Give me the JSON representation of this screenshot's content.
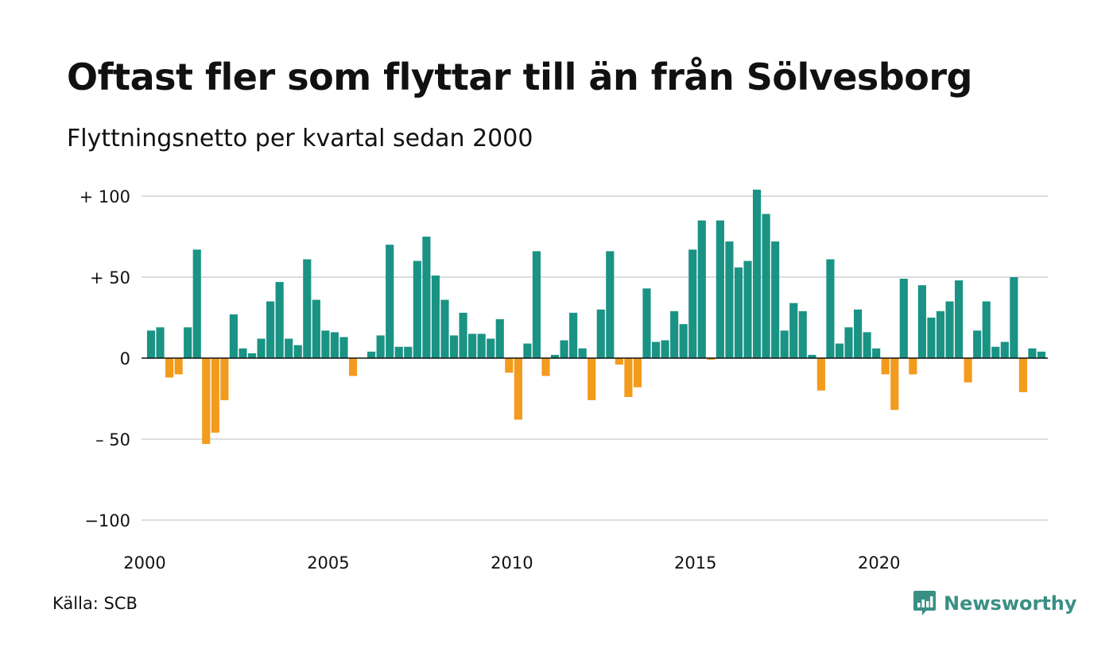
{
  "header": {
    "title": "Oftast fler som flyttar till än från Sölvesborg",
    "subtitle": "Flyttningsnetto per kvartal sedan 2000"
  },
  "footer": {
    "source": "Källa: SCB",
    "brand": "Newsworthy"
  },
  "colors": {
    "positive": "#1a9384",
    "negative": "#f29b1d",
    "grid": "#dddddd",
    "baseline": "#111111",
    "brand": "#3a8f84"
  },
  "icons": {
    "brand_logo": "newsworthy-chart-bubble-icon"
  },
  "chart_data": {
    "type": "bar",
    "title": "Oftast fler som flyttar till än från Sölvesborg",
    "subtitle": "Flyttningsnetto per kvartal sedan 2000",
    "xlabel": "",
    "ylabel": "",
    "ylim": [
      -100,
      100
    ],
    "yticks": [
      100,
      50,
      0,
      -50,
      -100
    ],
    "ytick_labels": [
      "+ 100",
      "+  50",
      "0",
      "– 50",
      "−100"
    ],
    "xticks": [
      "2000",
      "2005",
      "2010",
      "2015",
      "2020"
    ],
    "grid": true,
    "legend": "none",
    "start": "2000 Q1",
    "frequency": "quarter",
    "values": [
      17,
      19,
      -12,
      -10,
      19,
      67,
      -53,
      -46,
      -26,
      27,
      6,
      3,
      12,
      35,
      47,
      12,
      8,
      61,
      36,
      17,
      16,
      13,
      -11,
      0,
      4,
      14,
      70,
      7,
      7,
      60,
      75,
      51,
      36,
      14,
      28,
      15,
      15,
      12,
      24,
      -9,
      -38,
      9,
      66,
      -11,
      2,
      11,
      28,
      6,
      -26,
      30,
      66,
      -4,
      -24,
      -18,
      43,
      10,
      11,
      29,
      21,
      67,
      85,
      -1,
      85,
      72,
      56,
      60,
      104,
      89,
      72,
      17,
      34,
      29,
      2,
      -20,
      61,
      9,
      19,
      30,
      16,
      6,
      -10,
      -32,
      49,
      -10,
      45,
      25,
      29,
      35,
      48,
      -15,
      17,
      35,
      7,
      10,
      50,
      -21,
      6,
      4
    ]
  }
}
